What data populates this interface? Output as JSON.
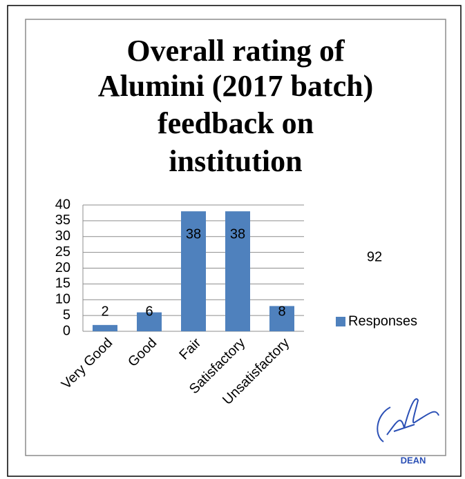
{
  "chart_data": {
    "type": "bar",
    "title": [
      "Overall rating of",
      "Alumini (2017 batch)",
      "feedback on",
      "institution"
    ],
    "categories": [
      "Very Good",
      "Good",
      "Fair",
      "Satisfactory",
      "Unsatisfactory"
    ],
    "series": [
      {
        "name": "Responses",
        "color": "#4f81bd",
        "values": [
          2,
          6,
          38,
          38,
          8
        ]
      }
    ],
    "ylim": [
      0,
      40
    ],
    "yticks": [
      0,
      5,
      10,
      15,
      20,
      25,
      30,
      35,
      40
    ],
    "grid": true,
    "annotation": "92",
    "legend": "right",
    "signature_label": "DEAN"
  }
}
